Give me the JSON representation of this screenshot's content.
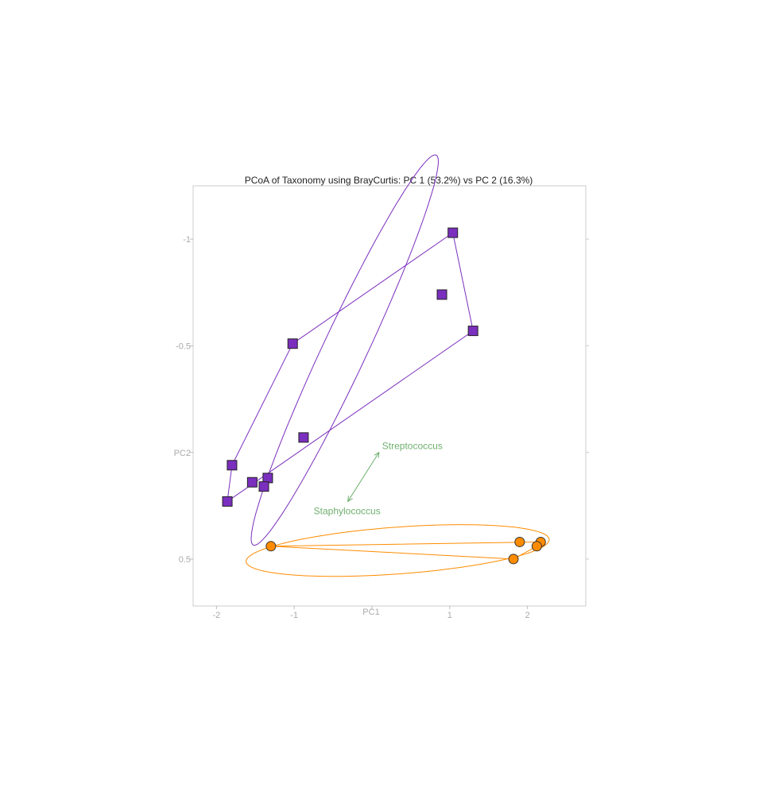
{
  "chart_data": {
    "type": "scatter",
    "title": "PCoA of Taxonomy using BrayCurtis: PC 1 (53.2%) vs PC 2 (16.3%)",
    "xlabel": "PC1",
    "ylabel": "PC2",
    "xlim": [
      -2.3,
      2.75
    ],
    "ylim": [
      -1.25,
      0.72
    ],
    "y_axis_reversed": true,
    "x_ticks": [
      {
        "value": -2,
        "label": "-2"
      },
      {
        "value": -1,
        "label": "-1"
      },
      {
        "value": 1,
        "label": "1"
      },
      {
        "value": 2,
        "label": "2"
      }
    ],
    "y_ticks": [
      {
        "value": -1,
        "label": "-1"
      },
      {
        "value": -0.5,
        "label": "-0.5"
      },
      {
        "value": 0.5,
        "label": "0.5"
      }
    ],
    "grid": false,
    "series": [
      {
        "marker": "square",
        "color": "#7B2FBE",
        "points": [
          {
            "x": 1.04,
            "y": -1.03
          },
          {
            "x": 0.9,
            "y": -0.74
          },
          {
            "x": 1.3,
            "y": -0.57
          },
          {
            "x": -1.02,
            "y": -0.51
          },
          {
            "x": -0.88,
            "y": -0.07
          },
          {
            "x": -1.8,
            "y": 0.06
          },
          {
            "x": -1.34,
            "y": 0.12
          },
          {
            "x": -1.54,
            "y": 0.14
          },
          {
            "x": -1.39,
            "y": 0.16
          },
          {
            "x": -1.86,
            "y": 0.23
          }
        ],
        "hull": [
          {
            "x": 1.04,
            "y": -1.03
          },
          {
            "x": 1.3,
            "y": -0.57
          },
          {
            "x": -1.86,
            "y": 0.23
          },
          {
            "x": -1.8,
            "y": 0.06
          },
          {
            "x": -1.02,
            "y": -0.51
          }
        ],
        "ellipse": {
          "cx": -0.35,
          "cy": -0.48,
          "rx": 1.5,
          "ry": 0.19,
          "angle_deg": -37
        }
      },
      {
        "marker": "circle",
        "color": "#FF8C00",
        "points": [
          {
            "x": -1.3,
            "y": 0.44
          },
          {
            "x": 1.9,
            "y": 0.42
          },
          {
            "x": 2.17,
            "y": 0.42
          },
          {
            "x": 2.12,
            "y": 0.44
          },
          {
            "x": 1.82,
            "y": 0.5
          }
        ],
        "hull": [
          {
            "x": -1.3,
            "y": 0.44
          },
          {
            "x": 2.17,
            "y": 0.42
          },
          {
            "x": 2.12,
            "y": 0.44
          },
          {
            "x": 1.82,
            "y": 0.5
          }
        ],
        "ellipse": {
          "cx": 0.33,
          "cy": 0.46,
          "rx": 1.95,
          "ry": 0.11,
          "angle_deg": -1.5
        }
      }
    ],
    "biplot": {
      "color": "#6FAF6F",
      "arrows": [
        {
          "label": "Streptococcus",
          "x": 0.09,
          "y": 0.0
        },
        {
          "label": "Staphylococcus",
          "x": -0.31,
          "y": 0.23
        }
      ]
    }
  }
}
